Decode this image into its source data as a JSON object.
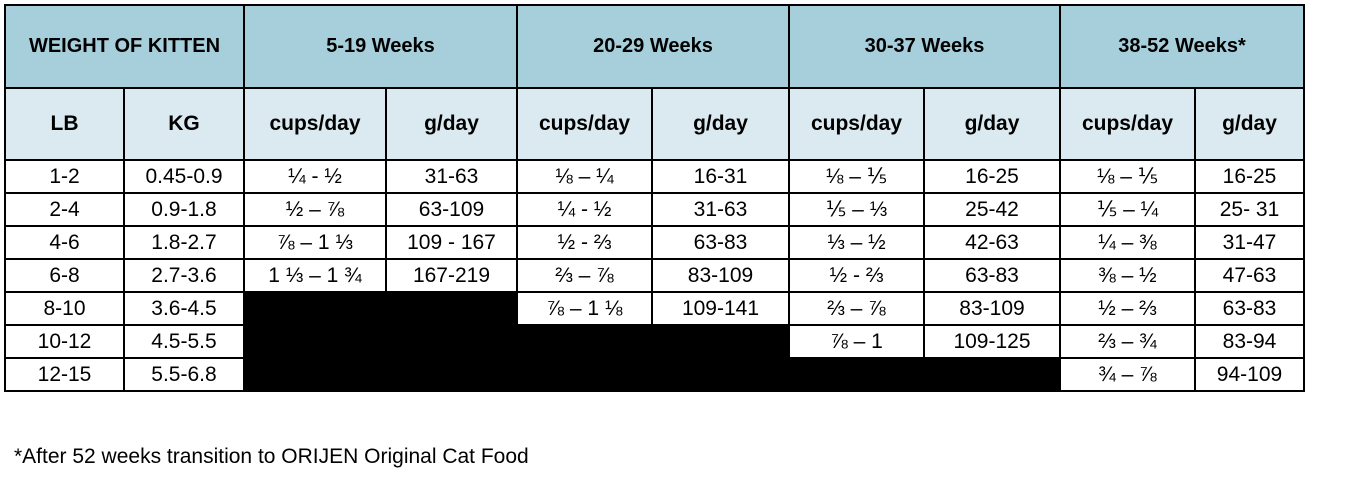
{
  "colors": {
    "header_group_bg": "#a6cfdb",
    "header_sub_bg": "#dbeaf0",
    "border": "#000000",
    "unavailable_cell": "#000000"
  },
  "header": {
    "weight_group": "WEIGHT OF KITTEN",
    "age_groups": [
      "5-19 Weeks",
      "20-29 Weeks",
      "30-37 Weeks",
      "38-52 Weeks*"
    ],
    "columns": [
      "LB",
      "KG",
      "cups/day",
      "g/day",
      "cups/day",
      "g/day",
      "cups/day",
      "g/day",
      "cups/day",
      "g/day"
    ]
  },
  "rows": [
    [
      "1-2",
      "0.45-0.9",
      "¼ - ½",
      "31-63",
      "⅛ – ¼",
      "16-31",
      "⅛ – ⅕",
      "16-25",
      "⅛ – ⅕",
      "16-25"
    ],
    [
      "2-4",
      "0.9-1.8",
      "½ – ⅞",
      "63-109",
      "¼ - ½",
      "31-63",
      "⅕ – ⅓",
      "25-42",
      "⅕ – ¼",
      "25- 31"
    ],
    [
      "4-6",
      "1.8-2.7",
      "⅞ – 1 ⅓",
      "109 - 167",
      "½ - ⅔",
      "63-83",
      "⅓ – ½",
      "42-63",
      "¼ – ⅜",
      "31-47"
    ],
    [
      "6-8",
      "2.7-3.6",
      "1 ⅓ – 1 ¾",
      "167-219",
      "⅔ – ⅞",
      "83-109",
      "½ - ⅔",
      "63-83",
      "⅜ – ½",
      "47-63"
    ],
    [
      "8-10",
      "3.6-4.5",
      "",
      "",
      "⅞ – 1 ⅛",
      "109-141",
      "⅔ – ⅞",
      "83-109",
      "½ – ⅔",
      "63-83"
    ],
    [
      "10-12",
      "4.5-5.5",
      "",
      "",
      "",
      "",
      "⅞ – 1",
      "109-125",
      "⅔ – ¾",
      "83-94"
    ],
    [
      "12-15",
      "5.5-6.8",
      "",
      "",
      "",
      "",
      "",
      "",
      "¾ – ⅞",
      "94-109"
    ]
  ],
  "footnote": "*After 52 weeks transition to ORIJEN Original Cat Food"
}
